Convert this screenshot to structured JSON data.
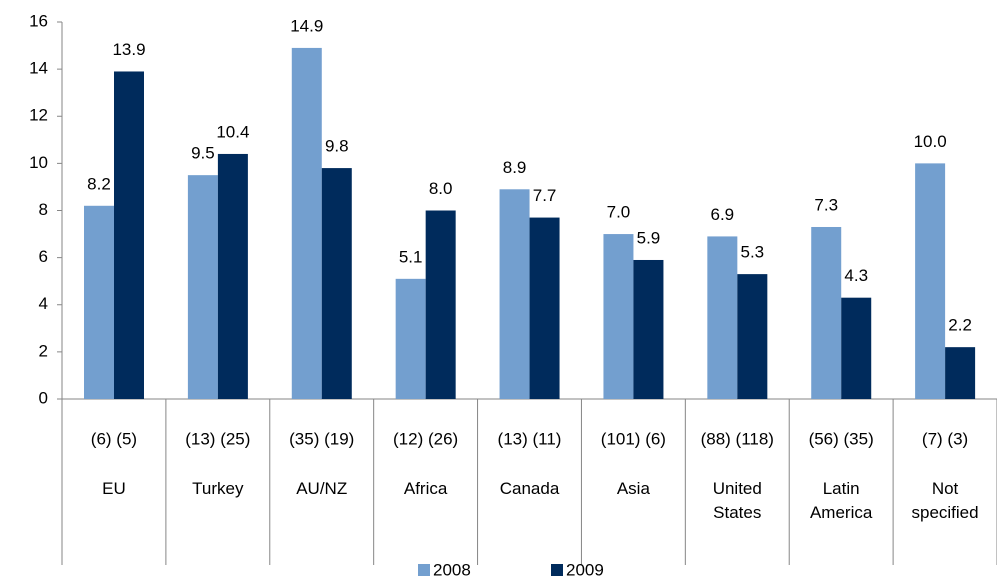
{
  "chart_data": {
    "type": "bar",
    "categories": [
      "EU",
      "Turkey",
      "AU/NZ",
      "Africa",
      "Canada",
      "Asia",
      "United States",
      "Latin America",
      "Not specified"
    ],
    "counts": [
      "(6) (5)",
      "(13) (25)",
      "(35) (19)",
      "(12) (26)",
      "(13) (11)",
      "(101) (6)",
      "(88) (118)",
      "(56) (35)",
      "(7) (3)"
    ],
    "series": [
      {
        "name": "2008",
        "color": "#739fcf",
        "values": [
          8.2,
          9.5,
          14.9,
          5.1,
          8.9,
          7.0,
          6.9,
          7.3,
          10.0
        ],
        "value_labels": [
          "8.2",
          "9.5",
          "14.9",
          "5.1",
          "8.9",
          "7.0",
          "6.9",
          "7.3",
          "10.0"
        ]
      },
      {
        "name": "2009",
        "color": "#002b5c",
        "values": [
          13.9,
          10.4,
          9.8,
          8.0,
          7.7,
          5.9,
          5.3,
          4.3,
          2.2
        ],
        "value_labels": [
          "13.9",
          "10.4",
          "9.8",
          "8.0",
          "7.7",
          "5.9",
          "5.3",
          "4.3",
          "2.2"
        ]
      }
    ],
    "ylim": [
      0,
      16
    ],
    "yticks": [
      0,
      2,
      4,
      6,
      8,
      10,
      12,
      14,
      16
    ],
    "grid": false,
    "legend": "bottom"
  }
}
